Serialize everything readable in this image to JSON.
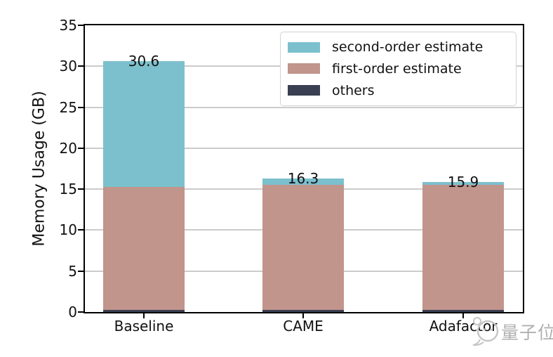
{
  "chart_data": {
    "type": "bar",
    "stacked": true,
    "title": "",
    "xlabel": "",
    "ylabel": "Memory Usage (GB)",
    "categories": [
      "Baseline",
      "CAME",
      "Adafactor"
    ],
    "series": [
      {
        "name": "others",
        "color": "#3a3f52",
        "values": [
          0.3,
          0.3,
          0.3
        ]
      },
      {
        "name": "first-order estimate",
        "color": "#c1948c",
        "values": [
          15.0,
          15.2,
          15.2
        ]
      },
      {
        "name": "second-order estimate",
        "color": "#7cc0cd",
        "values": [
          15.3,
          0.8,
          0.4
        ]
      }
    ],
    "totals": [
      30.6,
      16.3,
      15.9
    ],
    "total_labels": [
      "30.6",
      "16.3",
      "15.9"
    ],
    "ylim": [
      0,
      35
    ],
    "yticks": [
      0,
      5,
      10,
      15,
      20,
      25,
      30,
      35
    ],
    "grid": "horizontal gridlines on",
    "legend": {
      "position": "upper-right",
      "entries": [
        {
          "label": "second-order estimate",
          "color": "#7cc0cd"
        },
        {
          "label": "first-order estimate",
          "color": "#c1948c"
        },
        {
          "label": "others",
          "color": "#3a3f52"
        }
      ]
    }
  },
  "colors": {
    "second_order": "#7cc0cd",
    "first_order": "#c1948c",
    "others": "#3a3f52",
    "gridline": "#cbcbcb",
    "axis": "#000000",
    "watermark": "#b0b0b0"
  },
  "watermark": {
    "text": "量子位",
    "logo": "qbitai-logo"
  }
}
